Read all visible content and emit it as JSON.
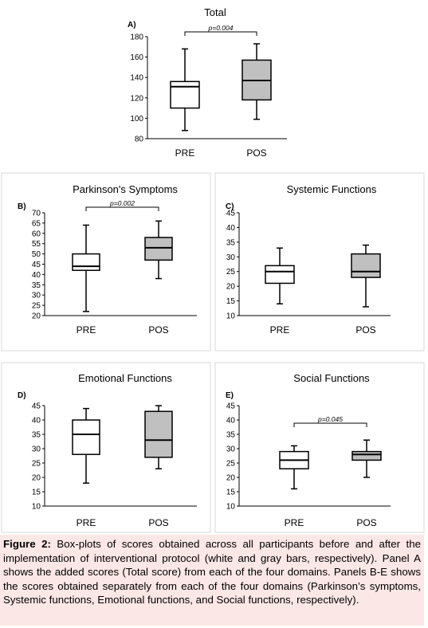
{
  "chart_data": [
    {
      "type": "box",
      "panel_letter": "A)",
      "title": "Total",
      "categories": [
        "PRE",
        "POS"
      ],
      "yticks": [
        80,
        100,
        120,
        140,
        160,
        180
      ],
      "ylim": [
        80,
        180
      ],
      "boxes": [
        {
          "category": "PRE",
          "min": 88,
          "q1": 110,
          "median": 131,
          "q3": 136,
          "max": 168,
          "fill": "#ffffff"
        },
        {
          "category": "POS",
          "min": 99,
          "q1": 118,
          "median": 137,
          "q3": 157,
          "max": 173,
          "fill": "#c0c0c0"
        }
      ],
      "annotation": "p=0.004"
    },
    {
      "type": "box",
      "panel_letter": "B)",
      "title": "Parkinson's Symptoms",
      "categories": [
        "PRE",
        "POS"
      ],
      "yticks": [
        20,
        25,
        30,
        35,
        40,
        45,
        50,
        55,
        60,
        65,
        70
      ],
      "ylim": [
        20,
        70
      ],
      "boxes": [
        {
          "category": "PRE",
          "min": 22,
          "q1": 42,
          "median": 44,
          "q3": 50,
          "max": 64,
          "fill": "#ffffff"
        },
        {
          "category": "POS",
          "min": 38,
          "q1": 47,
          "median": 53,
          "q3": 58,
          "max": 66,
          "fill": "#c0c0c0"
        }
      ],
      "annotation": "p=0.002"
    },
    {
      "type": "box",
      "panel_letter": "C)",
      "title": "Systemic Functions",
      "categories": [
        "PRE",
        "POS"
      ],
      "yticks": [
        10,
        15,
        20,
        25,
        30,
        35,
        40,
        45
      ],
      "ylim": [
        10,
        45
      ],
      "boxes": [
        {
          "category": "PRE",
          "min": 14,
          "q1": 21,
          "median": 25,
          "q3": 27,
          "max": 33,
          "fill": "#ffffff"
        },
        {
          "category": "POS",
          "min": 13,
          "q1": 23,
          "median": 25,
          "q3": 31,
          "max": 34,
          "fill": "#c0c0c0"
        }
      ],
      "annotation": ""
    },
    {
      "type": "box",
      "panel_letter": "D)",
      "title": "Emotional Functions",
      "categories": [
        "PRE",
        "POS"
      ],
      "yticks": [
        10,
        15,
        20,
        25,
        30,
        35,
        40,
        45
      ],
      "ylim": [
        10,
        45
      ],
      "boxes": [
        {
          "category": "PRE",
          "min": 18,
          "q1": 28,
          "median": 35,
          "q3": 40,
          "max": 44,
          "fill": "#ffffff"
        },
        {
          "category": "POS",
          "min": 23,
          "q1": 27,
          "median": 33,
          "q3": 43,
          "max": 45,
          "fill": "#c0c0c0"
        }
      ],
      "annotation": ""
    },
    {
      "type": "box",
      "panel_letter": "E)",
      "title": "Social Functions",
      "categories": [
        "PRE",
        "POS"
      ],
      "yticks": [
        10,
        15,
        20,
        25,
        30,
        35,
        40,
        45
      ],
      "ylim": [
        10,
        45
      ],
      "boxes": [
        {
          "category": "PRE",
          "min": 16,
          "q1": 23,
          "median": 26,
          "q3": 29,
          "max": 31,
          "fill": "#ffffff"
        },
        {
          "category": "POS",
          "min": 20,
          "q1": 26,
          "median": 28,
          "q3": 29,
          "max": 33,
          "fill": "#c0c0c0"
        }
      ],
      "annotation": "p=0.045"
    }
  ],
  "caption": {
    "label": "Figure 2:",
    "text": " Box-plots of scores obtained across all participants before and after the implementation of interventional protocol (white and gray bars, respectively). Panel A shows the added scores (Total score) from each of the four domains. Panels B-E shows the scores obtained separately from each of the four domains (Parkinson’s symptoms, Systemic functions, Emotional functions, and Social functions, respectively).",
    "background": "#fbe7e5"
  }
}
